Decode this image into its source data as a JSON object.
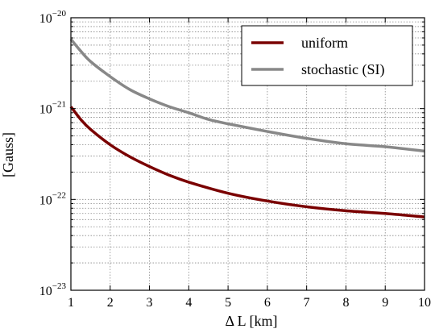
{
  "chart_data": {
    "type": "line",
    "xlabel": "Δ L [km]",
    "ylabel": "[Gauss]",
    "xlim": [
      1,
      10
    ],
    "ylim": [
      1e-23,
      1e-20
    ],
    "yscale": "log",
    "grid": true,
    "legend_position": "top-right",
    "x_ticks": [
      1,
      2,
      3,
      4,
      5,
      6,
      7,
      8,
      9,
      10
    ],
    "y_ticks": [
      {
        "base": "10",
        "exp": "−23",
        "value": 1e-23
      },
      {
        "base": "10",
        "exp": "−22",
        "value": 1e-22
      },
      {
        "base": "10",
        "exp": "−21",
        "value": 1e-21
      },
      {
        "base": "10",
        "exp": "−20",
        "value": 1e-20
      }
    ],
    "series": [
      {
        "name": "uniform",
        "color": "#7a0000",
        "x": [
          1.0,
          1.25,
          1.5,
          2.0,
          2.5,
          3.0,
          3.5,
          4.0,
          5.0,
          6.0,
          7.0,
          8.0,
          9.0,
          10.0
        ],
        "y": [
          1.05e-21,
          7.6e-22,
          5.9e-22,
          4e-22,
          2.95e-22,
          2.3e-22,
          1.85e-22,
          1.55e-22,
          1.17e-22,
          9.6e-23,
          8.3e-23,
          7.5e-23,
          7e-23,
          6.4e-23
        ]
      },
      {
        "name": "stochastic (SI)",
        "color": "#888888",
        "x": [
          1.0,
          1.25,
          1.5,
          2.0,
          2.5,
          3.0,
          3.5,
          4.0,
          4.5,
          5.0,
          6.0,
          7.0,
          8.0,
          9.0,
          10.0
        ],
        "y": [
          5.8e-21,
          4.3e-21,
          3.3e-21,
          2.25e-21,
          1.62e-21,
          1.28e-21,
          1.05e-21,
          9e-22,
          7.6e-22,
          6.8e-22,
          5.6e-22,
          4.7e-22,
          4.1e-22,
          3.8e-22,
          3.4e-22
        ]
      }
    ]
  }
}
